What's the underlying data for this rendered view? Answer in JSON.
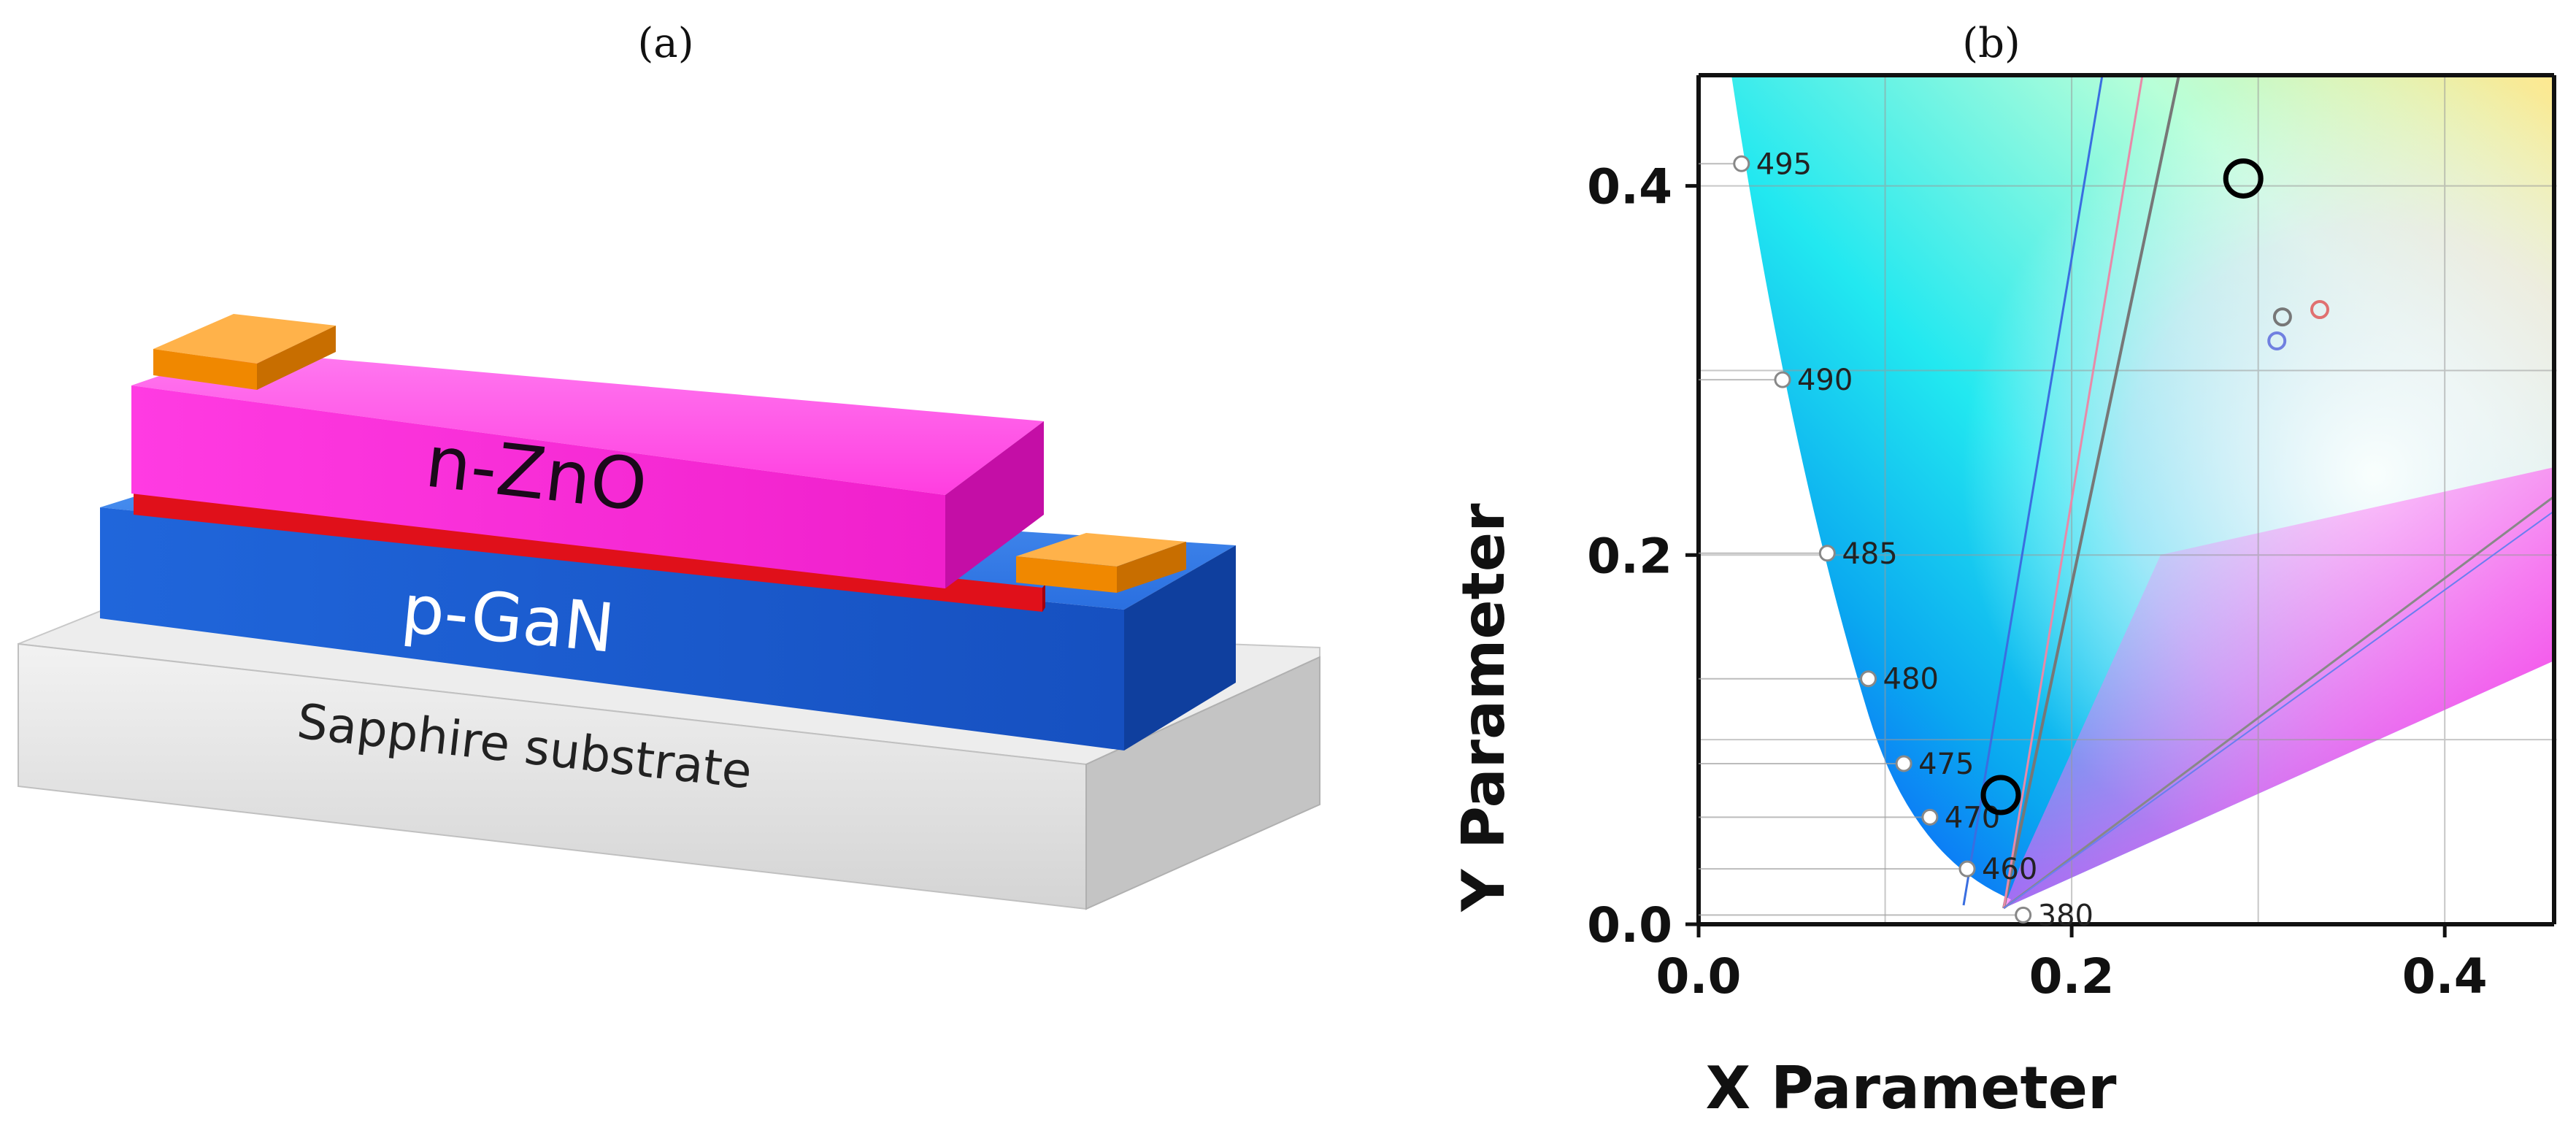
{
  "panels": {
    "a": {
      "label": "(a)",
      "layers": {
        "top": "n-ZnO",
        "middle": "p-GaN",
        "bottom": "Sapphire substrate"
      },
      "colors": {
        "zno": "#ff2bd9",
        "interface": "#e0101a",
        "gan": "#1a5fd0",
        "substrate": "#e6e6e6",
        "contact": "#ff9a1a"
      }
    },
    "b": {
      "label": "(b)",
      "chart_data": {
        "type": "scatter",
        "title": "",
        "xlabel": "X Parameter",
        "ylabel": "Y Parameter",
        "xlim": [
          0.0,
          0.46
        ],
        "ylim": [
          0.0,
          0.46
        ],
        "xticks": [
          0.0,
          0.2,
          0.4
        ],
        "xtick_labels": [
          "0.0",
          "0.2",
          "0.4"
        ],
        "yticks": [
          0.0,
          0.2,
          0.4
        ],
        "ytick_labels": [
          "0.0",
          "0.2",
          "0.4"
        ],
        "grid": true,
        "locus_points": [
          {
            "label": "495",
            "x": 0.023,
            "y": 0.412
          },
          {
            "label": "490",
            "x": 0.045,
            "y": 0.295
          },
          {
            "label": "485",
            "x": 0.069,
            "y": 0.201
          },
          {
            "label": "480",
            "x": 0.091,
            "y": 0.133
          },
          {
            "label": "475",
            "x": 0.11,
            "y": 0.087
          },
          {
            "label": "470",
            "x": 0.124,
            "y": 0.058
          },
          {
            "label": "460",
            "x": 0.144,
            "y": 0.03
          },
          {
            "label": "380",
            "x": 0.174,
            "y": 0.005
          }
        ],
        "marked_points": [
          {
            "x": 0.292,
            "y": 0.404
          },
          {
            "x": 0.162,
            "y": 0.07
          }
        ],
        "white_points": [
          {
            "x": 0.313,
            "y": 0.329,
            "color": "#777777"
          },
          {
            "x": 0.333,
            "y": 0.333,
            "color": "#e07070"
          },
          {
            "x": 0.31,
            "y": 0.316,
            "color": "#7080e0"
          }
        ]
      }
    }
  }
}
